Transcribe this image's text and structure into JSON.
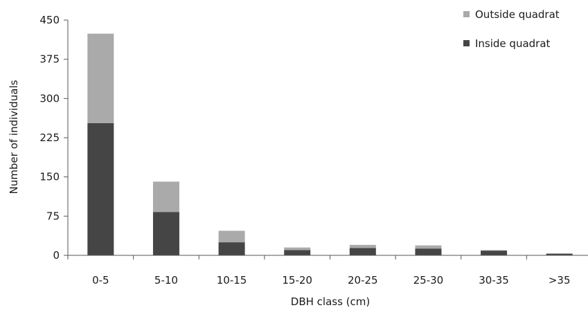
{
  "chart_data": {
    "type": "bar",
    "stacked": true,
    "categories": [
      "0-5",
      "5-10",
      "10-15",
      "15-20",
      "20-25",
      "25-30",
      "30-35",
      ">35"
    ],
    "series": [
      {
        "name": "Inside quadrat",
        "values": [
          253,
          83,
          25,
          10,
          14,
          13,
          9,
          3
        ],
        "color": "#454545"
      },
      {
        "name": "Outside quadrat",
        "values": [
          171,
          58,
          22,
          5,
          6,
          6,
          1,
          1
        ],
        "color": "#aaaaaa"
      }
    ],
    "title": "",
    "xlabel": "DBH class (cm)",
    "ylabel": "Number of individuals",
    "ylim": [
      0,
      450
    ],
    "yticks": [
      "0",
      "75",
      "150",
      "225",
      "300",
      "375",
      "450"
    ],
    "grid": false,
    "legend_position": "top-right"
  }
}
